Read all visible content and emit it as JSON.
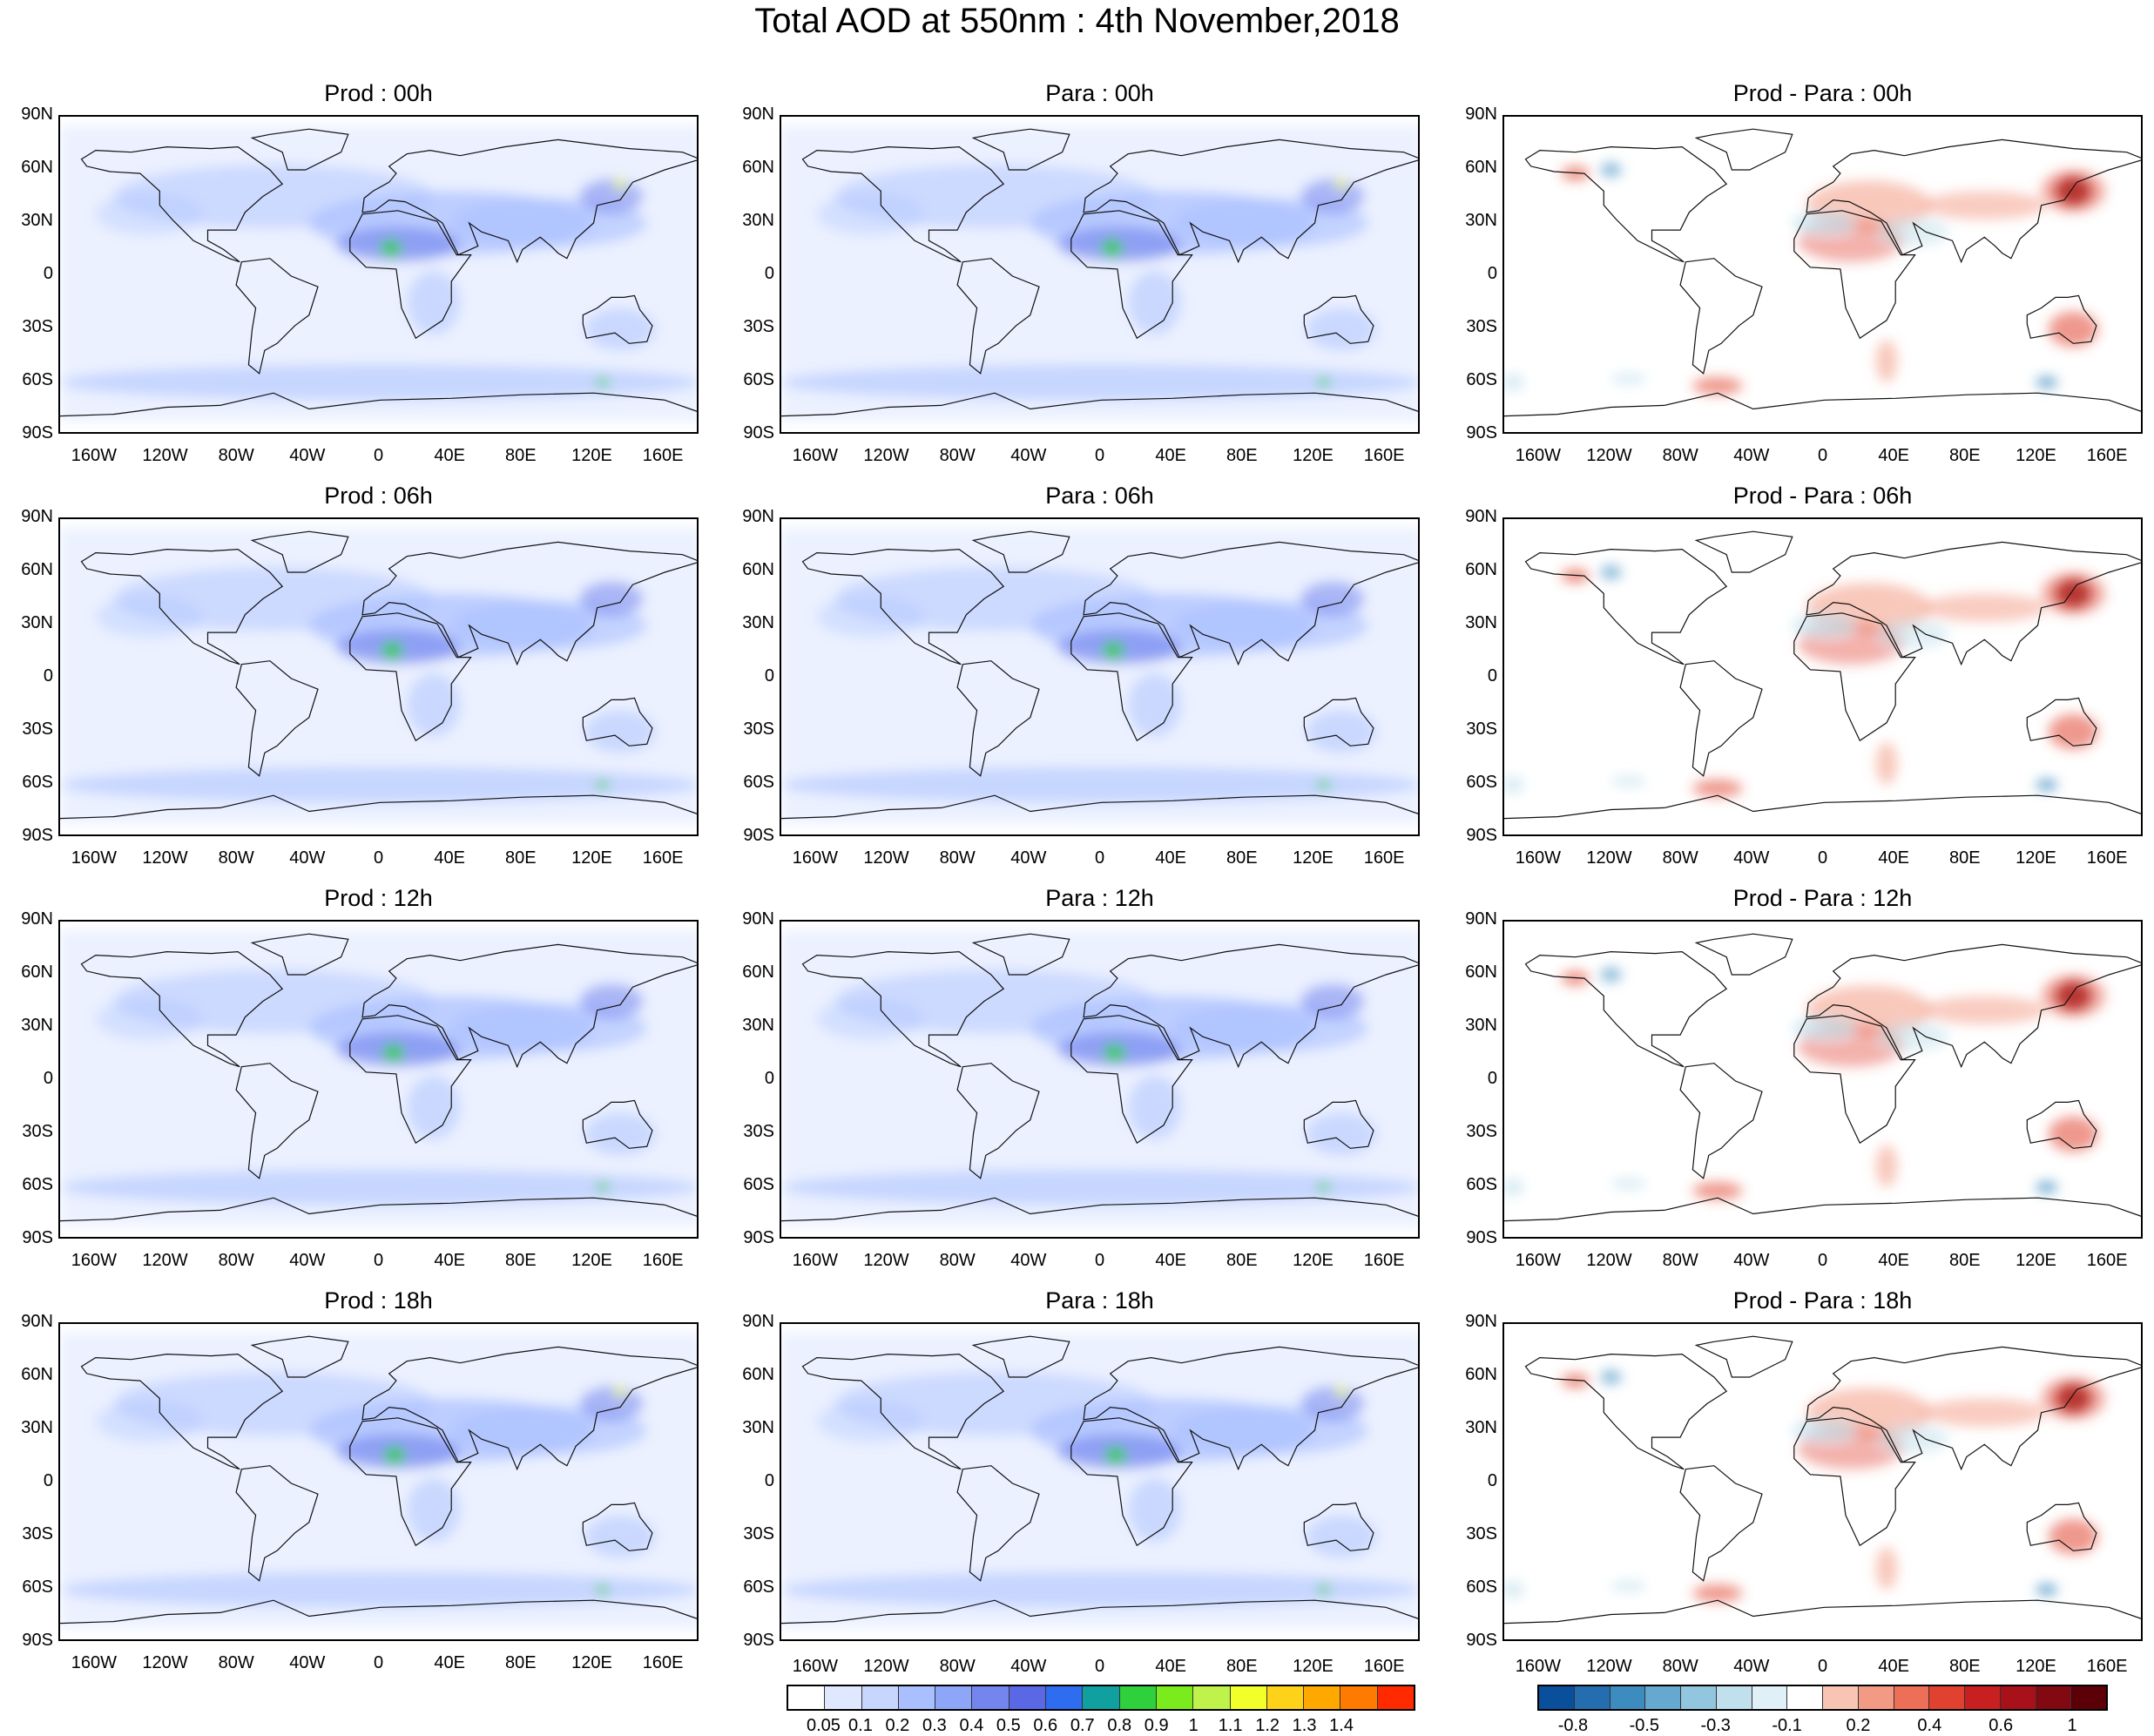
{
  "title": "Total AOD at 550nm : 4th November,2018",
  "lat_labels": [
    "90N",
    "60N",
    "30N",
    "0",
    "30S",
    "60S",
    "90S"
  ],
  "lon_labels": [
    "160W",
    "120W",
    "80W",
    "40W",
    "0",
    "40E",
    "80E",
    "120E",
    "160E"
  ],
  "panels": [
    {
      "title": "Prod : 00h",
      "kind": "aod"
    },
    {
      "title": "Para : 00h",
      "kind": "aod"
    },
    {
      "title": "Prod - Para : 00h",
      "kind": "diff"
    },
    {
      "title": "Prod : 06h",
      "kind": "aod"
    },
    {
      "title": "Para : 06h",
      "kind": "aod"
    },
    {
      "title": "Prod - Para : 06h",
      "kind": "diff"
    },
    {
      "title": "Prod : 12h",
      "kind": "aod"
    },
    {
      "title": "Para : 12h",
      "kind": "aod"
    },
    {
      "title": "Prod - Para : 12h",
      "kind": "diff"
    },
    {
      "title": "Prod : 18h",
      "kind": "aod"
    },
    {
      "title": "Para : 18h",
      "kind": "aod"
    },
    {
      "title": "Prod - Para : 18h",
      "kind": "diff"
    }
  ],
  "aod_colorbar": {
    "labels": [
      "0.05",
      "0.1",
      "0.2",
      "0.3",
      "0.4",
      "0.5",
      "0.6",
      "0.7",
      "0.8",
      "0.9",
      "1",
      "1.1",
      "1.2",
      "1.3",
      "1.4"
    ],
    "colors": [
      "#ffffff",
      "#dfe8ff",
      "#c6d6ff",
      "#a9bfff",
      "#8ea6f8",
      "#7585ee",
      "#5b68e6",
      "#2f6df0",
      "#10a0a0",
      "#2ed03c",
      "#7aec1e",
      "#bff24a",
      "#f2ff2a",
      "#ffd21a",
      "#ffa800",
      "#ff7a00",
      "#ff2a00"
    ]
  },
  "diff_colorbar": {
    "labels": [
      "-0.8",
      "-0.5",
      "-0.3",
      "-0.1",
      "0.2",
      "0.4",
      "0.6",
      "1"
    ],
    "colors": [
      "#0a4f9c",
      "#246eb0",
      "#3d8cc0",
      "#66a9d0",
      "#92c6de",
      "#bfe0ec",
      "#dff0f7",
      "#ffffff",
      "#f8c4b4",
      "#f39a84",
      "#ee6f58",
      "#e1422f",
      "#c82020",
      "#a8101a",
      "#820812",
      "#5c0008"
    ]
  },
  "colors": {
    "aod_light": "#dbe5ff",
    "aod_mid": "#a9bfff",
    "aod_dark": "#7585ee",
    "aod_green": "#2ed03c",
    "aod_yellow": "#f2ff2a",
    "diff_red": "#e1422f",
    "diff_darkred": "#820812",
    "diff_lightred": "#f39a84",
    "diff_blue": "#3d8cc0",
    "diff_lightblue": "#bfe0ec"
  }
}
